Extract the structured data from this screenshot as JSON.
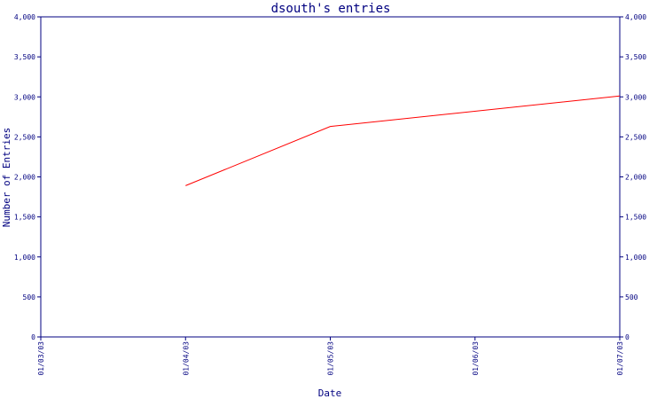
{
  "chart_data": {
    "type": "line",
    "title": "dsouth's entries",
    "xlabel": "Date",
    "ylabel": "Number of Entries",
    "x_tick_labels": [
      "01/03/03",
      "01/04/03",
      "01/05/03",
      "01/06/03",
      "01/07/03"
    ],
    "y_tick_labels": [
      "0",
      "500",
      "1,000",
      "1,500",
      "2,000",
      "2,500",
      "3,000",
      "3,500",
      "4,000"
    ],
    "ylim": [
      0,
      4000
    ],
    "xlim": [
      "01/03/03",
      "01/07/03"
    ],
    "grid": false,
    "series": [
      {
        "x": [
          "01/04/03",
          "01/05/03",
          "01/07/03"
        ],
        "y": [
          1890,
          2630,
          3010
        ]
      }
    ],
    "colors": {
      "axis": "#000080",
      "line": "#ff0000",
      "text": "#000080"
    }
  }
}
